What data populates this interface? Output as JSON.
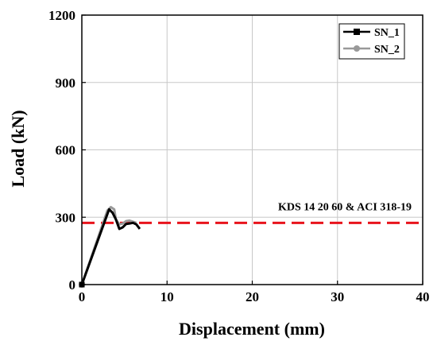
{
  "chart_data": {
    "type": "line",
    "xlabel": "Displacement (mm)",
    "ylabel": "Load (kN)",
    "xlim": [
      0,
      40
    ],
    "ylim": [
      0,
      1200
    ],
    "xticks": [
      0,
      10,
      20,
      30,
      40
    ],
    "yticks": [
      0,
      300,
      600,
      900,
      1200
    ],
    "grid": true,
    "legend_position": "top-right",
    "series": [
      {
        "name": "SN_1",
        "color": "#000000",
        "marker": "square",
        "x": [
          0,
          3.2,
          3.6,
          4.0,
          4.4,
          4.8,
          5.2,
          5.6,
          6.0,
          6.4,
          6.8
        ],
        "y": [
          0,
          335,
          320,
          290,
          248,
          255,
          270,
          272,
          275,
          268,
          248
        ]
      },
      {
        "name": "SN_2",
        "color": "#999999",
        "marker": "circle",
        "x": [
          0,
          3.0,
          3.4,
          3.8,
          4.0,
          4.4,
          4.8,
          5.2,
          5.6,
          6.0,
          6.4
        ],
        "y": [
          0,
          330,
          345,
          335,
          290,
          268,
          272,
          283,
          285,
          280,
          275
        ]
      }
    ],
    "reference_line": {
      "label": "KDS 14 20 60 & ACI 318-19",
      "y": 275,
      "color": "#e8141c",
      "style": "dashed"
    }
  }
}
